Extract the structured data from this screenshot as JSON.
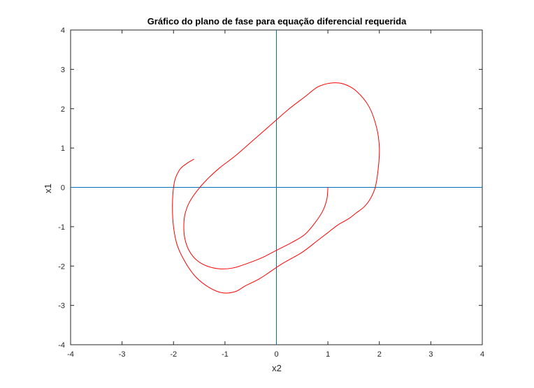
{
  "chart_data": {
    "type": "line",
    "title": "Gráfico do plano de fase para equação diferencial requerida",
    "xlabel": "x2",
    "ylabel": "x1",
    "xlim": [
      -4,
      4
    ],
    "ylim": [
      -4,
      4
    ],
    "xticks": [
      "-4",
      "-3",
      "-2",
      "-1",
      "0",
      "1",
      "2",
      "3",
      "4"
    ],
    "yticks": [
      "-4",
      "-3",
      "-2",
      "-1",
      "0",
      "1",
      "2",
      "3",
      "4"
    ],
    "grid": false,
    "legend": "none",
    "colors": {
      "trajectory": "#ff0000",
      "axes_lines": "#0072bd",
      "frame": "#262626"
    },
    "reference_lines": [
      {
        "orientation": "horizontal",
        "value": 0
      },
      {
        "orientation": "vertical",
        "value": 0
      }
    ],
    "series": [
      {
        "x": [
          1.0,
          0.98,
          0.9,
          0.75,
          0.55,
          0.3,
          0.0,
          -0.3,
          -0.6,
          -0.85,
          -1.1,
          -1.35,
          -1.55,
          -1.7,
          -1.78,
          -1.8,
          -1.78,
          -1.7,
          -1.55,
          -1.35,
          -1.1,
          -0.8,
          -0.45,
          -0.1,
          0.25,
          0.55,
          0.8,
          1.05,
          1.3,
          1.55,
          1.8,
          1.95,
          2.0,
          1.98,
          1.92,
          1.82,
          1.7,
          1.55,
          1.4,
          1.2,
          1.0,
          0.8,
          0.5,
          0.1,
          -0.3,
          -0.6,
          -0.8,
          -1.05,
          -1.3,
          -1.55,
          -1.75,
          -1.92,
          -2.0,
          -2.02,
          -1.98,
          -1.88,
          -1.75,
          -1.6
        ],
        "y": [
          0.0,
          -0.3,
          -0.6,
          -0.9,
          -1.2,
          -1.4,
          -1.6,
          -1.8,
          -1.95,
          -2.05,
          -2.07,
          -2.0,
          -1.85,
          -1.6,
          -1.3,
          -1.0,
          -0.7,
          -0.4,
          -0.1,
          0.2,
          0.5,
          0.8,
          1.2,
          1.6,
          2.0,
          2.3,
          2.55,
          2.65,
          2.63,
          2.45,
          2.05,
          1.5,
          1.0,
          0.5,
          0.0,
          -0.3,
          -0.5,
          -0.65,
          -0.8,
          -0.95,
          -1.15,
          -1.35,
          -1.65,
          -1.95,
          -2.3,
          -2.5,
          -2.65,
          -2.68,
          -2.55,
          -2.3,
          -1.95,
          -1.5,
          -1.0,
          -0.4,
          0.15,
          0.45,
          0.6,
          0.72
        ]
      }
    ]
  }
}
